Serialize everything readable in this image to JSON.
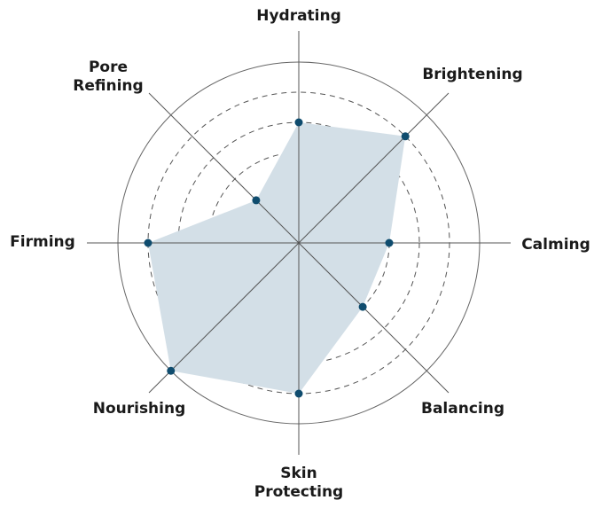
{
  "chart_data": {
    "type": "radar",
    "categories": [
      "Hydrating",
      "Brightening",
      "Calming",
      "Balancing",
      "Skin Protecting",
      "Nourishing",
      "Firming",
      "Pore Refining"
    ],
    "values": [
      4,
      5,
      3,
      3,
      5,
      6,
      5,
      2
    ],
    "rlim": [
      0,
      6
    ],
    "grid_rings": [
      2,
      3,
      4,
      5
    ],
    "grid": true,
    "colors": {
      "fill": "#d3dfe7",
      "point": "#0f4c6e",
      "grid": "#555555",
      "outer": "#666666"
    }
  }
}
